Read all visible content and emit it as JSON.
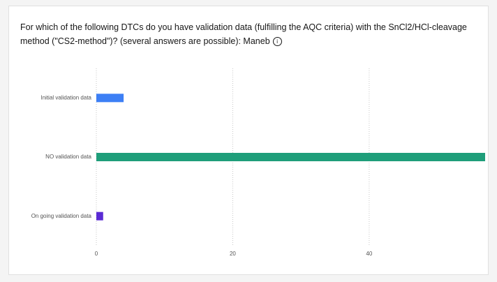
{
  "chart_data": {
    "type": "bar",
    "orientation": "horizontal",
    "title": "For which of the following DTCs do you have validation data (fulfilling the AQC criteria) with the SnCl2/HCl-cleavage method (\"CS2-method\")? (several answers are possible): Maneb",
    "categories": [
      "Initial validation data",
      "NO validation data",
      "On going validation data"
    ],
    "values": [
      4,
      57,
      1
    ],
    "colors": [
      "#3d7ff5",
      "#1f9e7a",
      "#5a2bd4"
    ],
    "xlim": [
      0,
      57
    ],
    "xticks": [
      0,
      20,
      40
    ],
    "grid": true
  }
}
